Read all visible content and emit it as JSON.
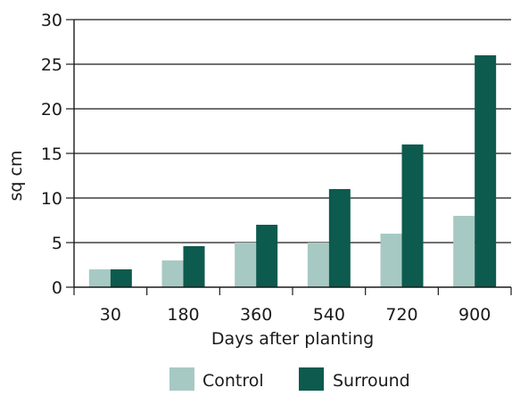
{
  "chart_data": {
    "type": "bar",
    "title": "",
    "xlabel": "Days after planting",
    "ylabel": "sq cm",
    "categories": [
      "30",
      "180",
      "360",
      "540",
      "720",
      "900"
    ],
    "ylim": [
      0,
      30
    ],
    "yticks": [
      "0",
      "5",
      "10",
      "15",
      "20",
      "25",
      "30"
    ],
    "grid": true,
    "legend_position": "bottom-center",
    "series": [
      {
        "name": "Control",
        "color": "#a7c9c3",
        "values": [
          2,
          3,
          5,
          5,
          6,
          8
        ]
      },
      {
        "name": "Surround",
        "color": "#0d5a4e",
        "values": [
          2,
          4.6,
          7,
          11,
          16,
          26
        ]
      }
    ],
    "axis_color": "#1a1a1a"
  }
}
